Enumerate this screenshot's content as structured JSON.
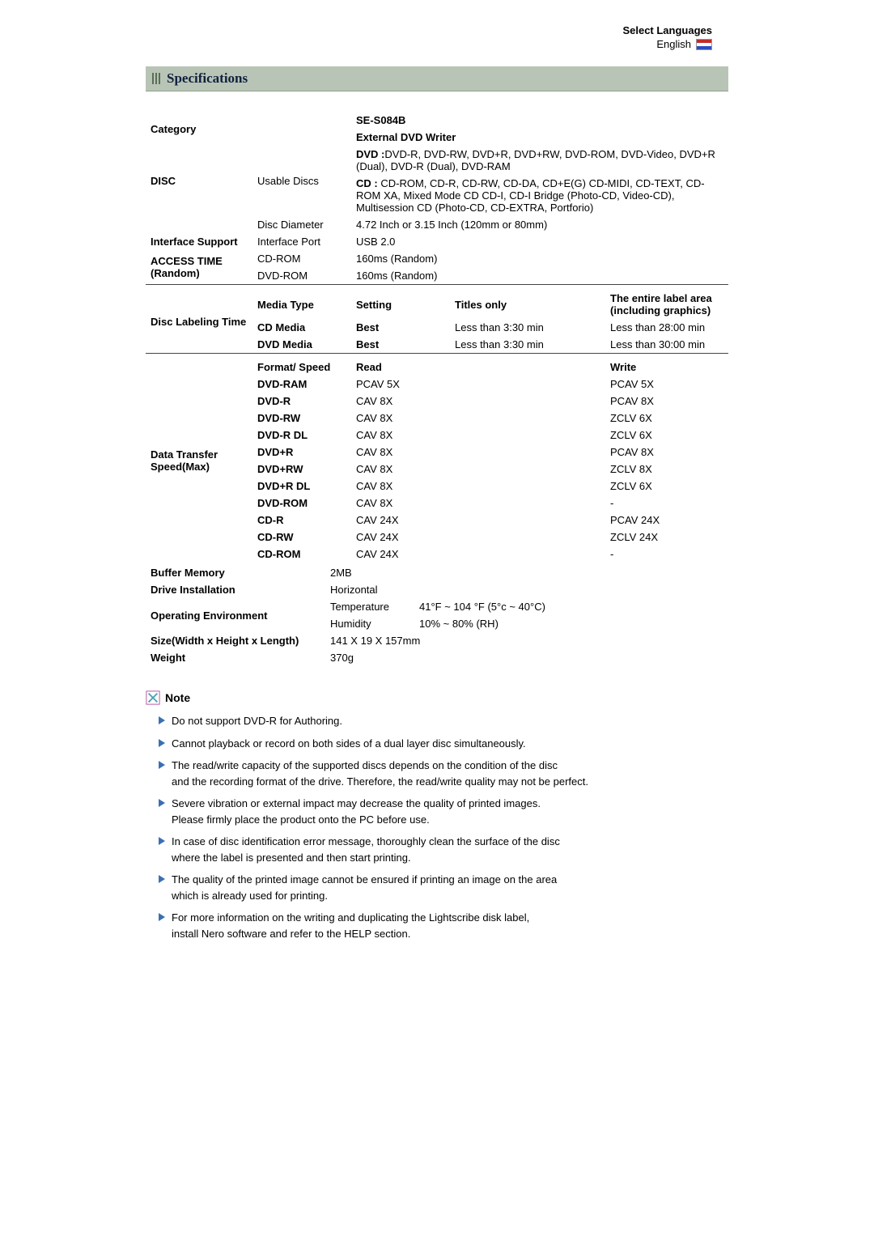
{
  "lang": {
    "title": "Select Languages",
    "value": "English"
  },
  "section_title": "Specifications",
  "header": {
    "category": "Category",
    "model": "SE-S084B",
    "product": "External DVD Writer"
  },
  "disc": {
    "label": "DISC",
    "usable_label": "Usable Discs",
    "dvd_label": "DVD :",
    "dvd_text": "DVD-R, DVD-RW, DVD+R, DVD+RW, DVD-ROM, DVD-Video, DVD+R (Dual), DVD-R (Dual), DVD-RAM",
    "cd_label": "CD  :",
    "cd_text": "CD-ROM, CD-R, CD-RW, CD-DA, CD+E(G) CD-MIDI, CD-TEXT, CD-ROM XA, Mixed Mode CD CD-I, CD-I Bridge (Photo-CD, Video-CD), Multisession CD (Photo-CD, CD-EXTRA, Portforio)",
    "diameter_label": "Disc Diameter",
    "diameter_value": "4.72 Inch or 3.15 Inch (120mm or 80mm)"
  },
  "interface": {
    "label": "Interface Support",
    "port_label": "Interface Port",
    "port_value": "USB 2.0"
  },
  "access": {
    "label": "ACCESS TIME (Random)",
    "cd_label": "CD-ROM",
    "cd_value": "160ms (Random)",
    "dvd_label": "DVD-ROM",
    "dvd_value": "160ms (Random)"
  },
  "labeling": {
    "group_label": "Disc Labeling Time",
    "media_type": "Media Type",
    "setting": "Setting",
    "titles_only": "Titles only",
    "entire_label": "The entire label area (including graphics)",
    "cd_label": "CD Media",
    "cd_setting": "Best",
    "cd_titles": "Less than 3:30 min",
    "cd_entire": "Less than 28:00 min",
    "dvd_label": "DVD Media",
    "dvd_setting": "Best",
    "dvd_titles": "Less than 3:30 min",
    "dvd_entire": "Less than 30:00 min"
  },
  "transfer": {
    "group_label": "Data Transfer Speed(Max)",
    "format_label": "Format/ Speed",
    "read_label": "Read",
    "write_label": "Write",
    "rows": [
      {
        "fmt": "DVD-RAM",
        "read": "PCAV 5X",
        "write": "PCAV 5X"
      },
      {
        "fmt": "DVD-R",
        "read": "CAV 8X",
        "write": "PCAV 8X"
      },
      {
        "fmt": "DVD-RW",
        "read": "CAV 8X",
        "write": "ZCLV 6X"
      },
      {
        "fmt": "DVD-R DL",
        "read": "CAV 8X",
        "write": "ZCLV 6X"
      },
      {
        "fmt": "DVD+R",
        "read": "CAV 8X",
        "write": "PCAV 8X"
      },
      {
        "fmt": "DVD+RW",
        "read": "CAV 8X",
        "write": "ZCLV 8X"
      },
      {
        "fmt": "DVD+R DL",
        "read": "CAV 8X",
        "write": "ZCLV 6X"
      },
      {
        "fmt": "DVD-ROM",
        "read": "CAV 8X",
        "write": "-"
      },
      {
        "fmt": "CD-R",
        "read": "CAV 24X",
        "write": "PCAV 24X"
      },
      {
        "fmt": "CD-RW",
        "read": "CAV 24X",
        "write": "ZCLV 24X"
      },
      {
        "fmt": "CD-ROM",
        "read": "CAV 24X",
        "write": "-"
      }
    ]
  },
  "buffer": {
    "label": "Buffer Memory",
    "value": "2MB"
  },
  "install": {
    "label": "Drive Installation",
    "value": "Horizontal"
  },
  "env": {
    "group_label": "Operating Environment",
    "temp_label": "Temperature",
    "temp_value": "41°F ~ 104 °F (5°c ~ 40°C)",
    "hum_label": "Humidity",
    "hum_value": "10% ~ 80% (RH)"
  },
  "size": {
    "label": "Size(Width x Height x Length)",
    "value": "141 X 19 X 157mm"
  },
  "weight": {
    "label": "Weight",
    "value": "370g"
  },
  "note": {
    "title": "Note",
    "items": [
      [
        "Do not support DVD-R for Authoring."
      ],
      [
        "Cannot playback or record on both sides of a dual layer disc simultaneously."
      ],
      [
        "The read/write capacity of the supported discs depends on the condition of the disc",
        "and the recording format of the drive. Therefore, the read/write quality may not be perfect."
      ],
      [
        "Severe vibration or external impact may decrease the quality of printed images.",
        "Please firmly place the product onto the PC before use."
      ],
      [
        "In case of disc identification error message, thoroughly clean the surface of the disc",
        "where the label is presented and then start printing."
      ],
      [
        "The quality of the printed image cannot be ensured if printing an image on the area",
        "which is already used for printing."
      ],
      [
        "For more information on the writing and duplicating the Lightscribe disk label,",
        "install Nero software and refer to the HELP section."
      ]
    ]
  }
}
